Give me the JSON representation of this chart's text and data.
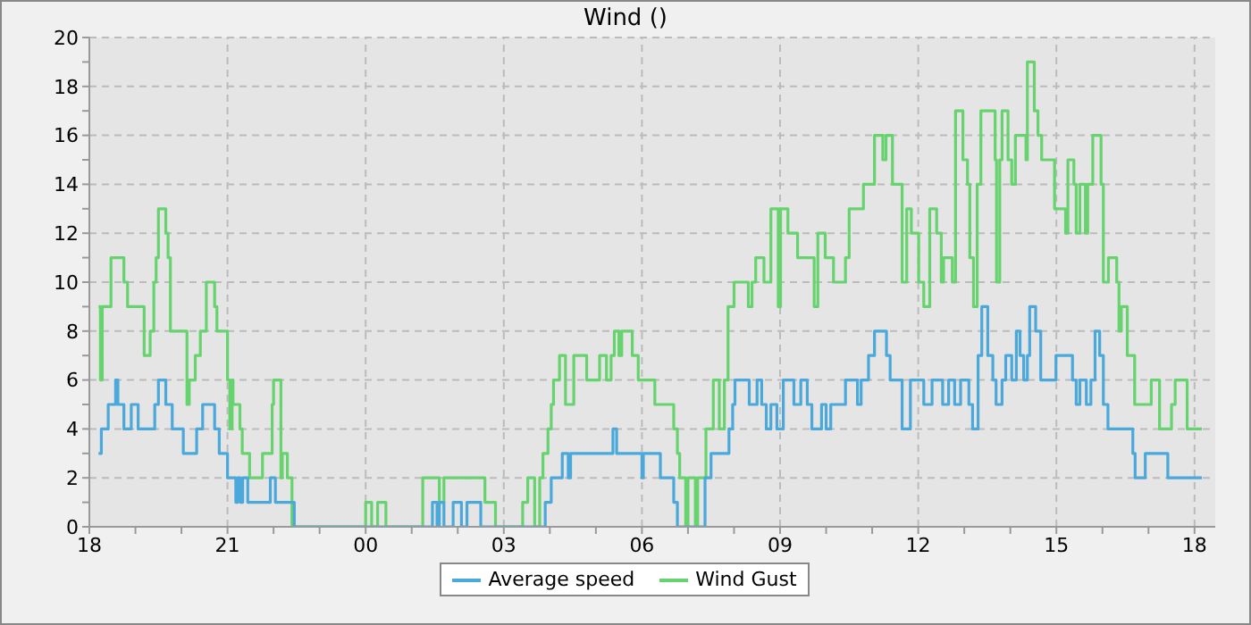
{
  "chart_data": {
    "type": "step",
    "title": "Wind ()",
    "xlim": [
      18,
      42.45
    ],
    "xticks": [
      {
        "value": 18,
        "label": "18"
      },
      {
        "value": 19,
        "label": null
      },
      {
        "value": 20,
        "label": null
      },
      {
        "value": 21,
        "label": "21"
      },
      {
        "value": 22,
        "label": null
      },
      {
        "value": 23,
        "label": null
      },
      {
        "value": 24,
        "label": "00"
      },
      {
        "value": 25,
        "label": null
      },
      {
        "value": 26,
        "label": null
      },
      {
        "value": 27,
        "label": "03"
      },
      {
        "value": 28,
        "label": null
      },
      {
        "value": 29,
        "label": null
      },
      {
        "value": 30,
        "label": "06"
      },
      {
        "value": 31,
        "label": null
      },
      {
        "value": 32,
        "label": null
      },
      {
        "value": 33,
        "label": "09"
      },
      {
        "value": 34,
        "label": null
      },
      {
        "value": 35,
        "label": null
      },
      {
        "value": 36,
        "label": "12"
      },
      {
        "value": 37,
        "label": null
      },
      {
        "value": 38,
        "label": null
      },
      {
        "value": 39,
        "label": "15"
      },
      {
        "value": 40,
        "label": null
      },
      {
        "value": 41,
        "label": null
      },
      {
        "value": 42,
        "label": "18"
      }
    ],
    "ylim": [
      0,
      20
    ],
    "yticks": [
      0,
      {
        "value": 1,
        "label": null
      },
      2,
      {
        "value": 3,
        "label": null
      },
      4,
      {
        "value": 5,
        "label": null
      },
      6,
      {
        "value": 7,
        "label": null
      },
      8,
      {
        "value": 9,
        "label": null
      },
      10,
      {
        "value": 11,
        "label": null
      },
      12,
      {
        "value": 13,
        "label": null
      },
      14,
      {
        "value": 15,
        "label": null
      },
      16,
      {
        "value": 17,
        "label": null
      },
      18,
      {
        "value": 19,
        "label": null
      },
      20
    ],
    "grid": true,
    "legend": "bottom",
    "marker": "none",
    "line_style": "solid",
    "series": [
      {
        "name": "Wind Gust",
        "color": "#66d36e",
        "x": [
          18.2,
          18.24,
          18.28,
          18.47,
          18.75,
          18.83,
          19.19,
          19.32,
          19.4,
          19.45,
          19.5,
          19.66,
          19.71,
          19.76,
          20.12,
          20.17,
          20.3,
          20.41,
          20.54,
          20.72,
          20.77,
          21.0,
          21.05,
          21.1,
          21.12,
          21.27,
          21.32,
          21.48,
          21.76,
          21.97,
          22.0,
          22.16,
          22.19,
          22.3,
          22.4,
          24.0,
          24.13,
          24.26,
          24.44,
          25.24,
          25.6,
          25.7,
          26.59,
          26.82,
          27.41,
          27.52,
          27.67,
          27.78,
          27.85,
          27.96,
          28.03,
          28.08,
          28.21,
          28.34,
          28.52,
          28.8,
          29.08,
          29.23,
          29.33,
          29.4,
          29.5,
          29.56,
          29.79,
          29.92,
          30.28,
          30.69,
          30.77,
          30.82,
          30.95,
          31.0,
          31.16,
          31.21,
          31.39,
          31.55,
          31.68,
          31.79,
          31.87,
          32.0,
          32.31,
          32.39,
          32.47,
          32.65,
          32.8,
          32.96,
          33.01,
          33.17,
          33.38,
          33.74,
          33.82,
          33.98,
          34.16,
          34.42,
          34.5,
          34.81,
          35.05,
          35.23,
          35.3,
          35.44,
          35.65,
          35.75,
          35.85,
          36.01,
          36.12,
          36.25,
          36.4,
          36.5,
          36.55,
          36.74,
          36.81,
          36.97,
          37.07,
          37.12,
          37.2,
          37.28,
          37.36,
          37.67,
          37.7,
          37.77,
          37.82,
          37.95,
          38.03,
          38.11,
          38.34,
          38.37,
          38.52,
          38.6,
          38.68,
          38.96,
          39.2,
          39.25,
          39.38,
          39.43,
          39.51,
          39.63,
          39.68,
          39.79,
          39.97,
          40.02,
          40.13,
          40.31,
          40.36,
          40.41,
          40.54,
          40.7,
          41.06,
          41.24,
          41.5,
          41.58,
          41.84,
          42.16
        ],
        "values": [
          9,
          6,
          9,
          11,
          10,
          9,
          7,
          8,
          10,
          11,
          13,
          12,
          11,
          8,
          5,
          6,
          7,
          8,
          10,
          9,
          8,
          6,
          4,
          6,
          5,
          4,
          3,
          2,
          3,
          5,
          6,
          2,
          3,
          2,
          0,
          1,
          0,
          1,
          0,
          2,
          1,
          2,
          1,
          0,
          1,
          2,
          0,
          2,
          3,
          4,
          5,
          6,
          7,
          5,
          7,
          6,
          7,
          6,
          7,
          8,
          7,
          8,
          7,
          6,
          5,
          4,
          3,
          2,
          0,
          2,
          0,
          2,
          4,
          6,
          4,
          6,
          9,
          10,
          9,
          10,
          11,
          10,
          13,
          9,
          13,
          12,
          11,
          9,
          12,
          11,
          10,
          11,
          13,
          14,
          16,
          15,
          16,
          14,
          10,
          13,
          12,
          10,
          9,
          13,
          12,
          10,
          11,
          10,
          17,
          15,
          14,
          11,
          9,
          14,
          17,
          15,
          10,
          15,
          17,
          15,
          14,
          16,
          15,
          19,
          17,
          16,
          15,
          13,
          12,
          15,
          14,
          12,
          14,
          12,
          14,
          16,
          14,
          10,
          11,
          10,
          8,
          9,
          7,
          5,
          6,
          4,
          5,
          6,
          4,
          4
        ]
      },
      {
        "name": "Average speed",
        "color": "#4aa8db",
        "x": [
          18.2,
          18.26,
          18.41,
          18.57,
          18.62,
          18.75,
          18.91,
          19.06,
          19.42,
          19.5,
          19.66,
          19.8,
          20.04,
          20.33,
          20.46,
          20.72,
          20.82,
          21.0,
          21.18,
          21.22,
          21.28,
          21.33,
          21.44,
          21.93,
          22.04,
          22.45,
          25.45,
          25.55,
          25.6,
          25.7,
          25.9,
          26.08,
          26.2,
          26.5,
          27.9,
          28.03,
          28.27,
          28.4,
          28.45,
          29.37,
          29.45,
          30.0,
          30.03,
          30.4,
          30.69,
          30.77,
          31.37,
          31.5,
          31.89,
          31.97,
          32.02,
          32.33,
          32.5,
          32.6,
          32.7,
          32.8,
          32.93,
          33.07,
          33.3,
          33.45,
          33.59,
          33.69,
          33.9,
          34.0,
          34.1,
          34.42,
          34.68,
          34.76,
          34.92,
          35.05,
          35.31,
          35.39,
          35.65,
          35.83,
          36.12,
          36.3,
          36.53,
          36.66,
          36.79,
          36.92,
          37.1,
          37.18,
          37.3,
          37.38,
          37.51,
          37.62,
          37.69,
          37.82,
          37.9,
          38.03,
          38.13,
          38.21,
          38.29,
          38.37,
          38.42,
          38.55,
          38.66,
          38.99,
          39.35,
          39.43,
          39.51,
          39.65,
          39.75,
          39.84,
          39.94,
          40.02,
          40.12,
          40.66,
          40.71,
          40.93,
          41.42,
          42.16
        ],
        "values": [
          3,
          4,
          5,
          6,
          5,
          4,
          5,
          4,
          5,
          6,
          5,
          4,
          3,
          4,
          5,
          4,
          3,
          2,
          1,
          2,
          1,
          2,
          1,
          2,
          1,
          0,
          1,
          0,
          1,
          0,
          1,
          0,
          1,
          0,
          1,
          2,
          3,
          2,
          3,
          4,
          3,
          2,
          3,
          2,
          1,
          0,
          2,
          3,
          4,
          5,
          6,
          5,
          6,
          5,
          4,
          5,
          4,
          6,
          5,
          6,
          5,
          4,
          5,
          4,
          5,
          6,
          5,
          6,
          7,
          8,
          7,
          6,
          4,
          6,
          5,
          6,
          5,
          6,
          5,
          6,
          5,
          4,
          7,
          9,
          7,
          6,
          5,
          6,
          7,
          6,
          8,
          7,
          6,
          7,
          9,
          8,
          6,
          7,
          6,
          5,
          6,
          5,
          6,
          8,
          7,
          5,
          4,
          3,
          2,
          3,
          2,
          2
        ]
      }
    ]
  }
}
